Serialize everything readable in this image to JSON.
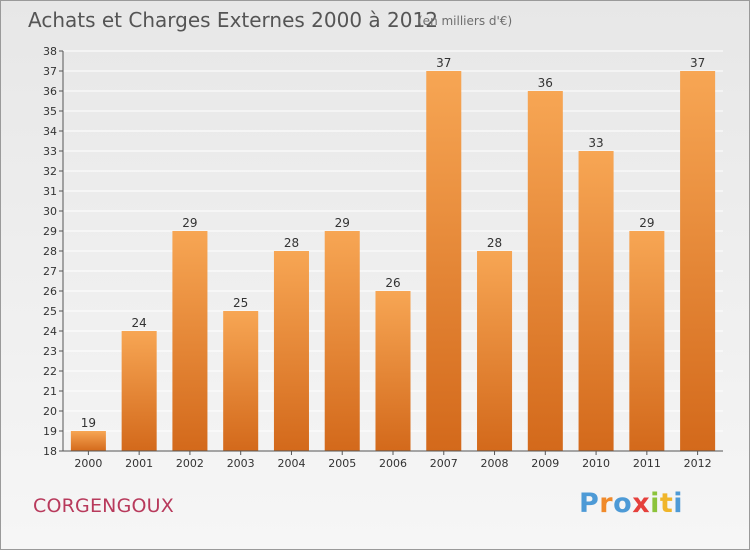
{
  "header": {
    "title": "Achats et Charges Externes 2000 à 2012",
    "subtitle": "(en milliers d'€)"
  },
  "footer": {
    "commune": "CORGENGOUX",
    "logo_letters": [
      "P",
      "r",
      "o",
      "x",
      "i",
      "t",
      "i"
    ]
  },
  "colors": {
    "bar_light": "#f7a654",
    "bar_dark": "#d3691b",
    "axis": "#555555",
    "grid": "#ffffff"
  },
  "chart_data": {
    "type": "bar",
    "title": "Achats et Charges Externes 2000 à 2012",
    "subtitle": "(en milliers d'€)",
    "categories": [
      "2000",
      "2001",
      "2002",
      "2003",
      "2004",
      "2005",
      "2006",
      "2007",
      "2008",
      "2009",
      "2010",
      "2011",
      "2012"
    ],
    "values": [
      19,
      24,
      29,
      25,
      28,
      29,
      26,
      37,
      28,
      36,
      33,
      29,
      37
    ],
    "ylim": [
      18,
      38
    ],
    "yticks": [
      18,
      19,
      20,
      21,
      22,
      23,
      24,
      25,
      26,
      27,
      28,
      29,
      30,
      31,
      32,
      33,
      34,
      35,
      36,
      37,
      38
    ],
    "xlabel": "",
    "ylabel": "",
    "grid": true,
    "legend": "none"
  }
}
